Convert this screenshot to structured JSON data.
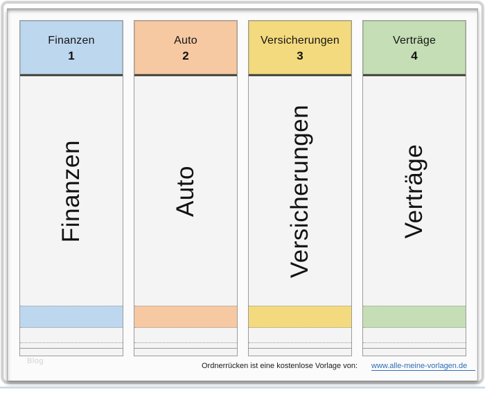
{
  "document": {
    "watermark": "Blog",
    "labels": [
      {
        "name": "Finanzen",
        "number": "1",
        "color": "#bdd7ee"
      },
      {
        "name": "Auto",
        "number": "2",
        "color": "#f6c9a3"
      },
      {
        "name": "Versicherungen",
        "number": "3",
        "color": "#f3da7e"
      },
      {
        "name": "Verträge",
        "number": "4",
        "color": "#c5deb5"
      }
    ],
    "header_divider_color": "#4b4b44",
    "footer": {
      "caption": "Ordnerrücken ist eine kostenlose Vorlage von:",
      "link_text": "www.alle-meine-vorlagen.de",
      "link_color": "#2e6db4"
    }
  }
}
